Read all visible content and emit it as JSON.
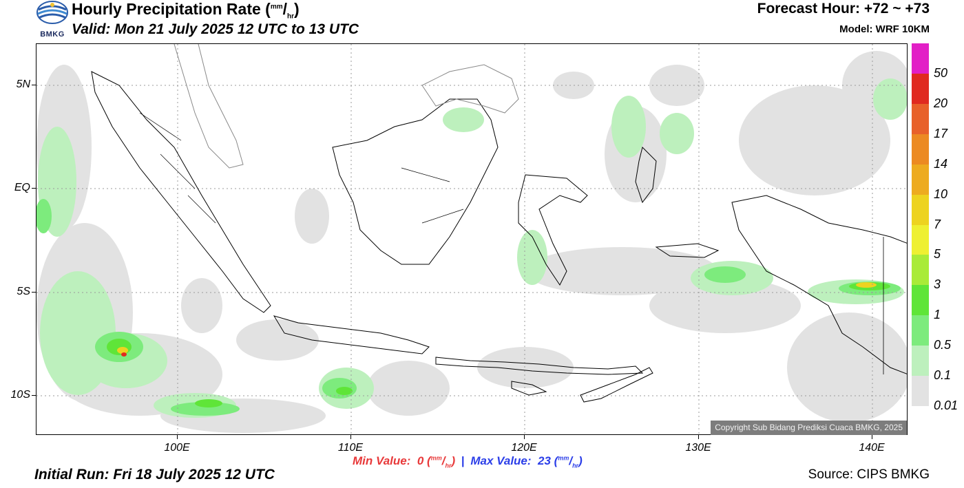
{
  "header": {
    "title_main": "Hourly Precipitation Rate (",
    "title_unit_num": "mm",
    "title_unit_slash": "/",
    "title_unit_den": "hr",
    "title_close": ")",
    "valid": "Valid: Mon 21 July 2025 12 UTC to 13 UTC",
    "forecast_hour": "Forecast Hour: +72 ~ +73",
    "model": "Model: WRF 10KM",
    "logo_text": "BMKG"
  },
  "axes": {
    "y_labels": [
      "5N",
      "EQ",
      "5S",
      "10S"
    ],
    "x_labels": [
      "100E",
      "110E",
      "120E",
      "130E",
      "140E"
    ]
  },
  "legend": {
    "labels": [
      "50",
      "20",
      "17",
      "14",
      "10",
      "7",
      "5",
      "3",
      "1",
      "0.5",
      "0.1",
      "0.01"
    ],
    "colors": [
      "#e21fc6",
      "#e02a20",
      "#e8612a",
      "#ec8a22",
      "#edab20",
      "#edd320",
      "#eef032",
      "#a9eb38",
      "#5fe538",
      "#7deb7d",
      "#bdf0bd",
      "#e2e2e2"
    ]
  },
  "copyright": "Copyright Sub Bidang Prediksi Cuaca BMKG, 2025",
  "stats": {
    "min_label": "Min Value:",
    "min_value": "0",
    "max_label": "Max Value:",
    "max_value": "23",
    "unit_num": "mm",
    "unit_den": "hr",
    "separator": "|"
  },
  "footer": {
    "initial_run": "Initial Run: Fri 18 July 2025 12 UTC",
    "source": "Source: CIPS BMKG"
  }
}
